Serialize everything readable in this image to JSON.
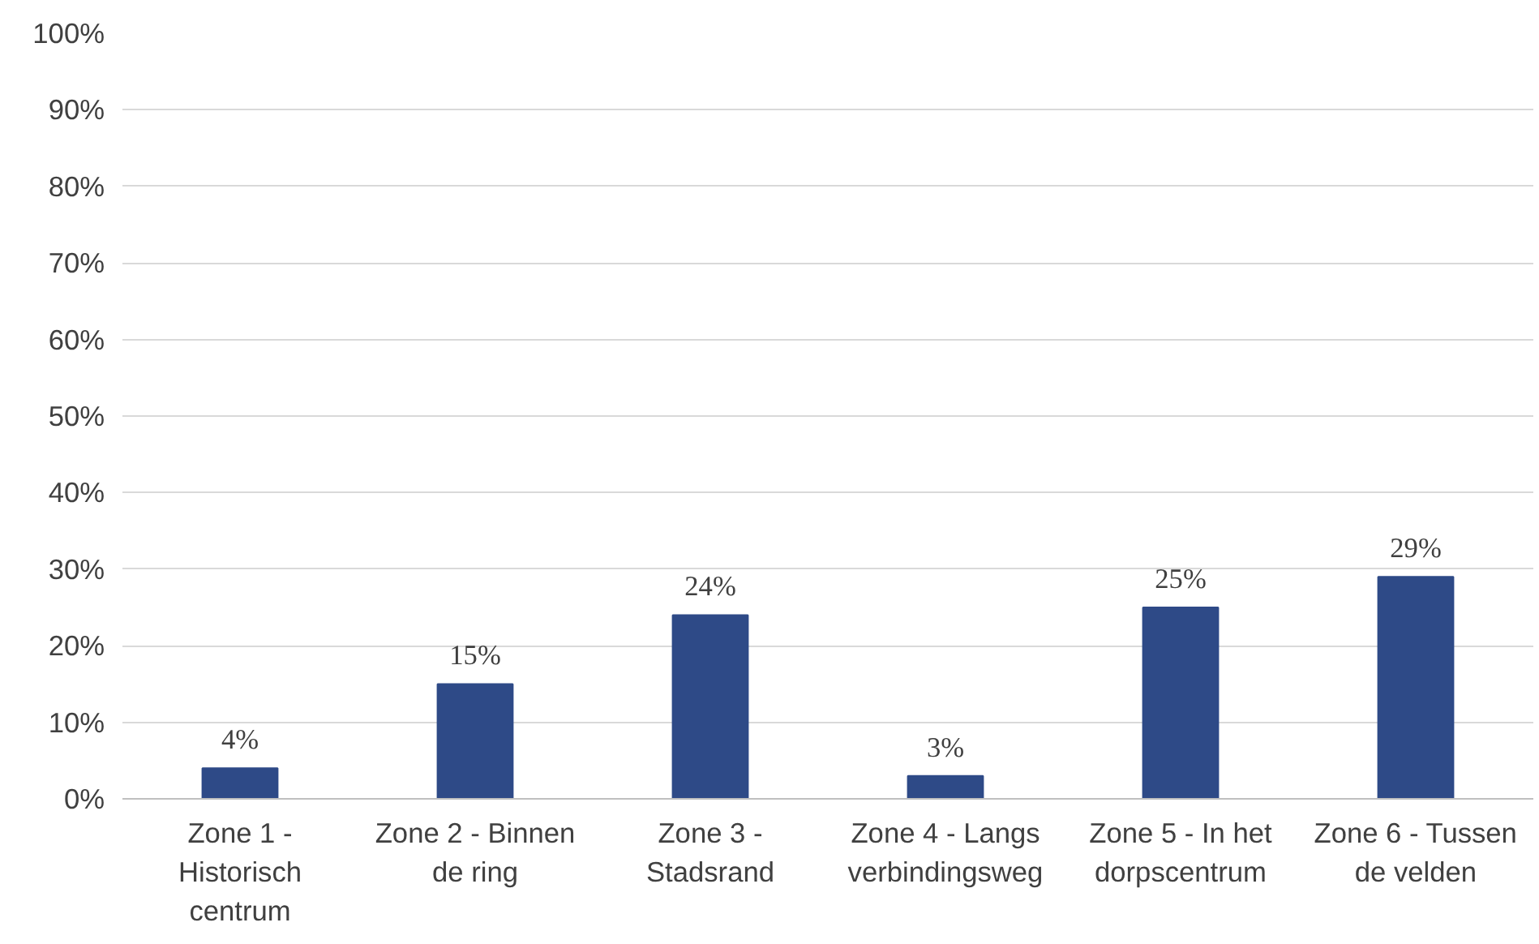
{
  "chart_data": {
    "type": "bar",
    "categories": [
      "Zone 1 - Historisch centrum",
      "Zone 2 - Binnen de ring",
      "Zone 3 - Stadsrand",
      "Zone 4 - Langs verbindingsweg",
      "Zone 5 - In het dorpscentrum",
      "Zone 6 - Tussen de velden"
    ],
    "values": [
      4,
      15,
      24,
      3,
      25,
      29
    ],
    "value_labels": [
      "4%",
      "15%",
      "24%",
      "3%",
      "25%",
      "29%"
    ],
    "color": "#2e4a87",
    "ylim": [
      0,
      100
    ],
    "yticks": [
      {
        "value": 0,
        "label": "0%"
      },
      {
        "value": 10,
        "label": "10%"
      },
      {
        "value": 20,
        "label": "20%"
      },
      {
        "value": 30,
        "label": "30%"
      },
      {
        "value": 40,
        "label": "40%"
      },
      {
        "value": 50,
        "label": "50%"
      },
      {
        "value": 60,
        "label": "60%"
      },
      {
        "value": 70,
        "label": "70%"
      },
      {
        "value": 80,
        "label": "80%"
      },
      {
        "value": 90,
        "label": "90%"
      },
      {
        "value": 100,
        "label": "100%"
      }
    ],
    "grid": "y"
  }
}
